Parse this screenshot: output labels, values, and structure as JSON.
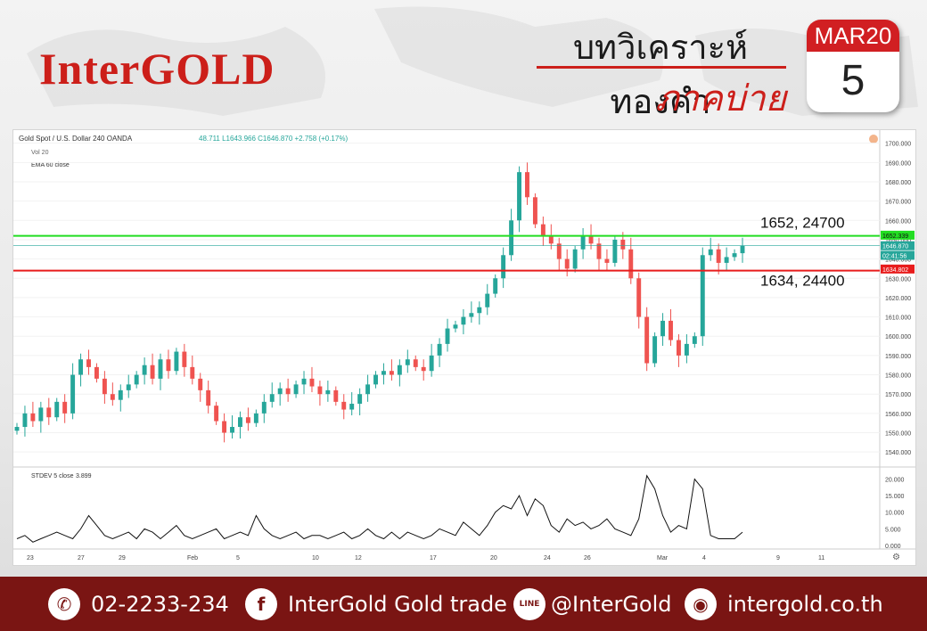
{
  "header": {
    "logo": "InterGOLD",
    "title_top": "บทวิเคราะห์ทองคำ",
    "title_bottom": "ภาคบ่าย",
    "calendar_month": "MAR20",
    "calendar_day": "5"
  },
  "chart_data": {
    "type": "candlestick",
    "symbol_label": "Gold Spot / U.S. Dollar  240  OANDA",
    "ohlc_text": "48.711 L1643.966 C1646.870 +2.758 (+0.17%)",
    "indicators": [
      "Vol 20",
      "EMA 60 close"
    ],
    "price_axis": {
      "ylim": [
        1535,
        1704
      ],
      "ticks": [
        "1700.000",
        "1690.000",
        "1680.000",
        "1670.000",
        "1660.000",
        "1650.000",
        "1640.000",
        "1630.000",
        "1620.000",
        "1610.000",
        "1600.000",
        "1590.000",
        "1580.000",
        "1570.000",
        "1560.000",
        "1550.000",
        "1540.000"
      ]
    },
    "price_tags": {
      "green": "1652.339",
      "current": "1646.870",
      "timer": "02:41:56",
      "red": "1634.802"
    },
    "levels": [
      {
        "price": 1652,
        "label": "1652, 24700",
        "color": "#22dd22"
      },
      {
        "price": 1634,
        "label": "1634, 24400",
        "color": "#e81c1c"
      }
    ],
    "x_labels": [
      "23",
      "27",
      "29",
      "Feb",
      "5",
      "10",
      "12",
      "17",
      "20",
      "24",
      "26",
      "Mar",
      "4",
      "9",
      "11"
    ],
    "closes": [
      1553,
      1560,
      1556,
      1563,
      1558,
      1566,
      1560,
      1580,
      1588,
      1584,
      1578,
      1570,
      1567,
      1572,
      1575,
      1580,
      1585,
      1578,
      1588,
      1582,
      1592,
      1584,
      1578,
      1572,
      1564,
      1556,
      1550,
      1553,
      1558,
      1555,
      1560,
      1566,
      1570,
      1573,
      1570,
      1575,
      1578,
      1574,
      1570,
      1572,
      1566,
      1562,
      1565,
      1570,
      1575,
      1580,
      1582,
      1580,
      1585,
      1588,
      1584,
      1582,
      1590,
      1596,
      1604,
      1606,
      1610,
      1612,
      1615,
      1622,
      1630,
      1642,
      1660,
      1685,
      1672,
      1658,
      1652,
      1648,
      1640,
      1635,
      1645,
      1652,
      1648,
      1640,
      1638,
      1650,
      1645,
      1630,
      1610,
      1586,
      1600,
      1608,
      1598,
      1590,
      1596,
      1600,
      1642,
      1645,
      1638,
      1641,
      1643,
      1647
    ],
    "stdev": {
      "label": "STDEV 5 close",
      "value": "3.899",
      "ylim": [
        0,
        22
      ],
      "ticks": [
        "20.000",
        "15.000",
        "10.000",
        "5.000",
        "0.000"
      ],
      "values": [
        2,
        3,
        1,
        2,
        3,
        4,
        3,
        2,
        5,
        9,
        6,
        3,
        2,
        3,
        4,
        2,
        5,
        4,
        2,
        4,
        6,
        3,
        2,
        3,
        4,
        5,
        2,
        3,
        4,
        3,
        9,
        5,
        3,
        2,
        3,
        4,
        2,
        3,
        3,
        2,
        3,
        4,
        2,
        3,
        5,
        3,
        2,
        4,
        2,
        4,
        3,
        2,
        3,
        5,
        4,
        3,
        7,
        5,
        3,
        6,
        10,
        12,
        11,
        15,
        9,
        14,
        12,
        6,
        4,
        8,
        6,
        7,
        5,
        6,
        8,
        5,
        4,
        3,
        8,
        21,
        17,
        9,
        4,
        6,
        5,
        20,
        17,
        3,
        2,
        2,
        2,
        4
      ]
    }
  },
  "footer": {
    "phone": "02-2233-234",
    "facebook": "InterGold Gold trade",
    "line": "@InterGold",
    "website": "intergold.co.th",
    "icons": [
      "phone-icon",
      "facebook-icon",
      "line-icon",
      "globe-icon"
    ]
  }
}
